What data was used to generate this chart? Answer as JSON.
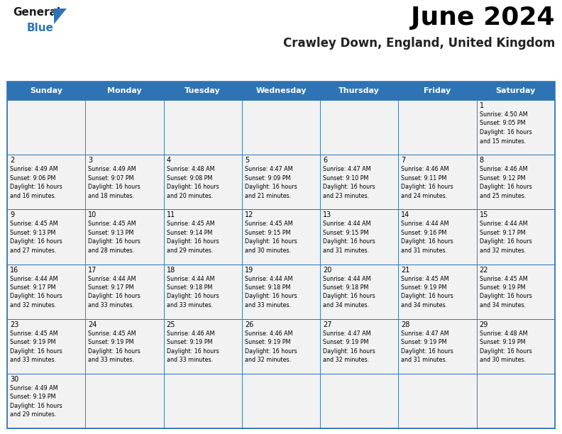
{
  "title": "June 2024",
  "subtitle": "Crawley Down, England, United Kingdom",
  "days_of_week": [
    "Sunday",
    "Monday",
    "Tuesday",
    "Wednesday",
    "Thursday",
    "Friday",
    "Saturday"
  ],
  "header_bg": "#2E74B5",
  "header_text": "#FFFFFF",
  "cell_bg": "#F2F2F2",
  "border_color": "#2E74B5",
  "text_color": "#000000",
  "calendar": [
    [
      null,
      null,
      null,
      null,
      null,
      null,
      {
        "day": "1",
        "sunrise": "4:50 AM",
        "sunset": "9:05 PM",
        "daylight1": "16 hours",
        "daylight2": "and 15 minutes."
      }
    ],
    [
      {
        "day": "2",
        "sunrise": "4:49 AM",
        "sunset": "9:06 PM",
        "daylight1": "16 hours",
        "daylight2": "and 16 minutes."
      },
      {
        "day": "3",
        "sunrise": "4:49 AM",
        "sunset": "9:07 PM",
        "daylight1": "16 hours",
        "daylight2": "and 18 minutes."
      },
      {
        "day": "4",
        "sunrise": "4:48 AM",
        "sunset": "9:08 PM",
        "daylight1": "16 hours",
        "daylight2": "and 20 minutes."
      },
      {
        "day": "5",
        "sunrise": "4:47 AM",
        "sunset": "9:09 PM",
        "daylight1": "16 hours",
        "daylight2": "and 21 minutes."
      },
      {
        "day": "6",
        "sunrise": "4:47 AM",
        "sunset": "9:10 PM",
        "daylight1": "16 hours",
        "daylight2": "and 23 minutes."
      },
      {
        "day": "7",
        "sunrise": "4:46 AM",
        "sunset": "9:11 PM",
        "daylight1": "16 hours",
        "daylight2": "and 24 minutes."
      },
      {
        "day": "8",
        "sunrise": "4:46 AM",
        "sunset": "9:12 PM",
        "daylight1": "16 hours",
        "daylight2": "and 25 minutes."
      }
    ],
    [
      {
        "day": "9",
        "sunrise": "4:45 AM",
        "sunset": "9:13 PM",
        "daylight1": "16 hours",
        "daylight2": "and 27 minutes."
      },
      {
        "day": "10",
        "sunrise": "4:45 AM",
        "sunset": "9:13 PM",
        "daylight1": "16 hours",
        "daylight2": "and 28 minutes."
      },
      {
        "day": "11",
        "sunrise": "4:45 AM",
        "sunset": "9:14 PM",
        "daylight1": "16 hours",
        "daylight2": "and 29 minutes."
      },
      {
        "day": "12",
        "sunrise": "4:45 AM",
        "sunset": "9:15 PM",
        "daylight1": "16 hours",
        "daylight2": "and 30 minutes."
      },
      {
        "day": "13",
        "sunrise": "4:44 AM",
        "sunset": "9:15 PM",
        "daylight1": "16 hours",
        "daylight2": "and 31 minutes."
      },
      {
        "day": "14",
        "sunrise": "4:44 AM",
        "sunset": "9:16 PM",
        "daylight1": "16 hours",
        "daylight2": "and 31 minutes."
      },
      {
        "day": "15",
        "sunrise": "4:44 AM",
        "sunset": "9:17 PM",
        "daylight1": "16 hours",
        "daylight2": "and 32 minutes."
      }
    ],
    [
      {
        "day": "16",
        "sunrise": "4:44 AM",
        "sunset": "9:17 PM",
        "daylight1": "16 hours",
        "daylight2": "and 32 minutes."
      },
      {
        "day": "17",
        "sunrise": "4:44 AM",
        "sunset": "9:17 PM",
        "daylight1": "16 hours",
        "daylight2": "and 33 minutes."
      },
      {
        "day": "18",
        "sunrise": "4:44 AM",
        "sunset": "9:18 PM",
        "daylight1": "16 hours",
        "daylight2": "and 33 minutes."
      },
      {
        "day": "19",
        "sunrise": "4:44 AM",
        "sunset": "9:18 PM",
        "daylight1": "16 hours",
        "daylight2": "and 33 minutes."
      },
      {
        "day": "20",
        "sunrise": "4:44 AM",
        "sunset": "9:18 PM",
        "daylight1": "16 hours",
        "daylight2": "and 34 minutes."
      },
      {
        "day": "21",
        "sunrise": "4:45 AM",
        "sunset": "9:19 PM",
        "daylight1": "16 hours",
        "daylight2": "and 34 minutes."
      },
      {
        "day": "22",
        "sunrise": "4:45 AM",
        "sunset": "9:19 PM",
        "daylight1": "16 hours",
        "daylight2": "and 34 minutes."
      }
    ],
    [
      {
        "day": "23",
        "sunrise": "4:45 AM",
        "sunset": "9:19 PM",
        "daylight1": "16 hours",
        "daylight2": "and 33 minutes."
      },
      {
        "day": "24",
        "sunrise": "4:45 AM",
        "sunset": "9:19 PM",
        "daylight1": "16 hours",
        "daylight2": "and 33 minutes."
      },
      {
        "day": "25",
        "sunrise": "4:46 AM",
        "sunset": "9:19 PM",
        "daylight1": "16 hours",
        "daylight2": "and 33 minutes."
      },
      {
        "day": "26",
        "sunrise": "4:46 AM",
        "sunset": "9:19 PM",
        "daylight1": "16 hours",
        "daylight2": "and 32 minutes."
      },
      {
        "day": "27",
        "sunrise": "4:47 AM",
        "sunset": "9:19 PM",
        "daylight1": "16 hours",
        "daylight2": "and 32 minutes."
      },
      {
        "day": "28",
        "sunrise": "4:47 AM",
        "sunset": "9:19 PM",
        "daylight1": "16 hours",
        "daylight2": "and 31 minutes."
      },
      {
        "day": "29",
        "sunrise": "4:48 AM",
        "sunset": "9:19 PM",
        "daylight1": "16 hours",
        "daylight2": "and 30 minutes."
      }
    ],
    [
      {
        "day": "30",
        "sunrise": "4:49 AM",
        "sunset": "9:19 PM",
        "daylight1": "16 hours",
        "daylight2": "and 29 minutes."
      },
      null,
      null,
      null,
      null,
      null,
      null
    ]
  ],
  "title_fontsize": 26,
  "subtitle_fontsize": 12,
  "header_fontsize": 8,
  "day_num_fontsize": 7,
  "cell_text_fontsize": 5.8
}
